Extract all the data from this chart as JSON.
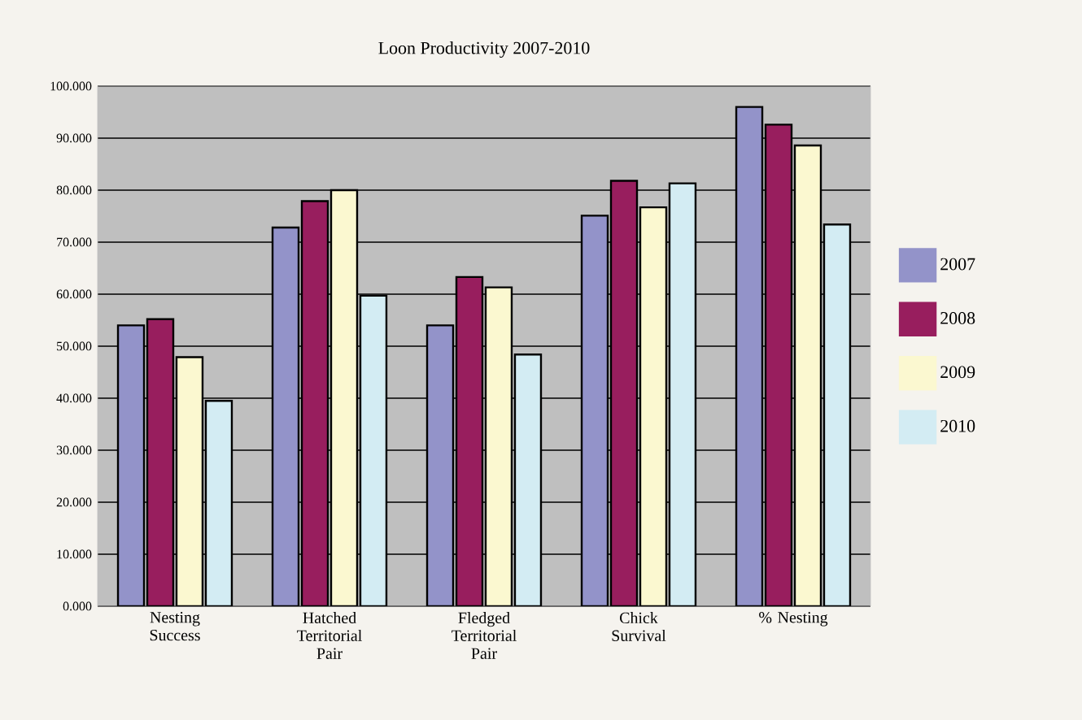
{
  "chart_data": {
    "type": "bar",
    "title": "Loon Productivity 2007-2010",
    "categories": [
      "Nesting Success",
      "Hatched Territorial Pair",
      "Fledged Territorial Pair",
      "Chick Survival",
      "% Nesting"
    ],
    "series": [
      {
        "name": "2007",
        "color": "#9393c9",
        "values": [
          54.0,
          72.8,
          54.0,
          75.1,
          96.0
        ]
      },
      {
        "name": "2008",
        "color": "#981e5e",
        "values": [
          55.2,
          77.9,
          63.3,
          81.8,
          92.6
        ]
      },
      {
        "name": "2009",
        "color": "#fbf8d0",
        "values": [
          47.9,
          80.0,
          61.3,
          76.7,
          88.6
        ]
      },
      {
        "name": "2010",
        "color": "#d3ecf3",
        "values": [
          39.5,
          59.7,
          48.4,
          81.3,
          73.4
        ]
      }
    ],
    "ylim": [
      0,
      100
    ],
    "yticks": [
      {
        "value": 0,
        "label": "0.000"
      },
      {
        "value": 10,
        "label": "10.000"
      },
      {
        "value": 20,
        "label": "20.000"
      },
      {
        "value": 30,
        "label": "30.000"
      },
      {
        "value": 40,
        "label": "40.000"
      },
      {
        "value": 50,
        "label": "50.000"
      },
      {
        "value": 60,
        "label": "60.000"
      },
      {
        "value": 70,
        "label": "70.000"
      },
      {
        "value": 80,
        "label": "80.000"
      },
      {
        "value": 90,
        "label": "90.000"
      },
      {
        "value": 100,
        "label": "100.000"
      }
    ],
    "grid": "y",
    "legend": "right"
  }
}
